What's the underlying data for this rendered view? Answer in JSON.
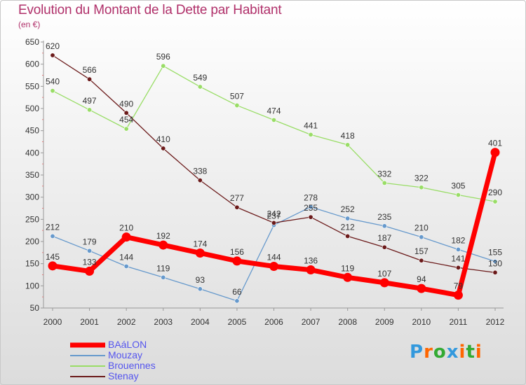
{
  "chart_data": {
    "type": "line",
    "title": "Evolution du Montant de la Dette par Habitant",
    "subtitle": "(en €)",
    "x": [
      "2000",
      "2001",
      "2002",
      "2003",
      "2004",
      "2005",
      "2006",
      "2007",
      "2008",
      "2009",
      "2010",
      "2011",
      "2012"
    ],
    "yticks": [
      50,
      100,
      150,
      200,
      250,
      300,
      350,
      400,
      450,
      500,
      550,
      600,
      650
    ],
    "ylim": [
      50,
      650
    ],
    "grid": false,
    "legend_position": "bottom-left",
    "series": [
      {
        "name": "BAáLON",
        "color": "#ff0000",
        "emphasis": true,
        "values": [
          145,
          133,
          210,
          192,
          174,
          156,
          144,
          136,
          119,
          107,
          94,
          79,
          401
        ],
        "labels": [
          "145",
          "133",
          "210",
          "192",
          "174",
          "156",
          "144",
          "136",
          "119",
          "107",
          "94",
          "79",
          "401"
        ]
      },
      {
        "name": "Mouzay",
        "color": "#6699cc",
        "values": [
          212,
          179,
          144,
          119,
          93,
          66,
          237,
          278,
          252,
          235,
          210,
          182,
          155
        ],
        "labels": [
          "212",
          "179",
          "144",
          "119",
          "93",
          "66",
          "237",
          "278",
          "252",
          "235",
          "210",
          "182",
          "155"
        ]
      },
      {
        "name": "Brouennes",
        "color": "#99dd66",
        "values": [
          540,
          497,
          454,
          596,
          549,
          507,
          474,
          441,
          418,
          332,
          322,
          305,
          290
        ],
        "labels": [
          "540",
          "497",
          "454",
          "596",
          "549",
          "507",
          "474",
          "441",
          "418",
          "332",
          "322",
          "305",
          "290"
        ]
      },
      {
        "name": "Stenay",
        "color": "#6b1a1a",
        "values": [
          620,
          566,
          490,
          410,
          338,
          277,
          242,
          255,
          212,
          187,
          157,
          141,
          130
        ],
        "labels": [
          "620",
          "566",
          "490",
          "410",
          "338",
          "277",
          "242",
          "255",
          "212",
          "187",
          "157",
          "141",
          "130"
        ]
      }
    ]
  },
  "logo": {
    "letters": [
      "P",
      "r",
      "o",
      "x",
      "i",
      "t",
      "i"
    ],
    "colors": [
      "#3399dd",
      "#ff6600",
      "#33aa33",
      "#3399dd",
      "#ff6600",
      "#33aa33",
      "#ff6600"
    ]
  }
}
